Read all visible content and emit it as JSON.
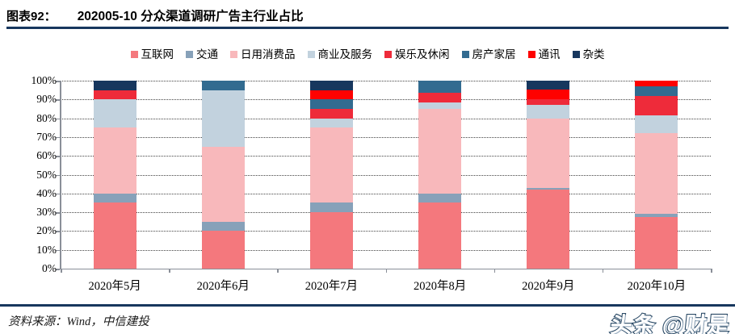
{
  "header": {
    "figure_label": "图表92：",
    "figure_title": "202005-10 分众渠道调研广告主行业占比"
  },
  "footer": {
    "source_text": "资料来源：Wind，中信建投",
    "watermark_text": "头条 @财是"
  },
  "colors": {
    "rule_navy": "#17375E",
    "axis_gray": "#8a8f98"
  },
  "chart_data": {
    "type": "bar",
    "stacked": true,
    "title": "202005-10 分众渠道调研广告主行业占比",
    "legend_position": "top",
    "grid": "horizontal-dotted",
    "ylim": [
      0,
      100
    ],
    "y_tick_labels": [
      "0%",
      "10%",
      "20%",
      "30%",
      "40%",
      "50%",
      "60%",
      "70%",
      "80%",
      "90%",
      "100%"
    ],
    "categories": [
      "2020年5月",
      "2020年6月",
      "2020年7月",
      "2020年8月",
      "2020年9月",
      "2020年10月"
    ],
    "series": [
      {
        "name": "互联网",
        "color": "#F4787D",
        "values": [
          35,
          20,
          30,
          35,
          42,
          27.5
        ]
      },
      {
        "name": "交通",
        "color": "#87A1B9",
        "values": [
          5,
          5,
          5,
          5,
          1,
          1.5
        ]
      },
      {
        "name": "日用消费品",
        "color": "#F8B8BB",
        "values": [
          35,
          40,
          40,
          45,
          37,
          43
        ]
      },
      {
        "name": "商业及服务",
        "color": "#C2D2DE",
        "values": [
          15,
          30,
          5,
          3.5,
          7,
          9.5
        ]
      },
      {
        "name": "娱乐及休闲",
        "color": "#EE2B3A",
        "values": [
          5,
          0,
          5,
          5,
          3,
          10.5
        ]
      },
      {
        "name": "房产家居",
        "color": "#326B90",
        "values": [
          0,
          5,
          5,
          6.5,
          0,
          5
        ]
      },
      {
        "name": "通讯",
        "color": "#FE0100",
        "values": [
          0,
          0,
          5,
          0,
          5.5,
          3
        ]
      },
      {
        "name": "杂类",
        "color": "#17375E",
        "values": [
          5,
          0,
          5,
          0,
          4.5,
          0
        ]
      }
    ]
  }
}
